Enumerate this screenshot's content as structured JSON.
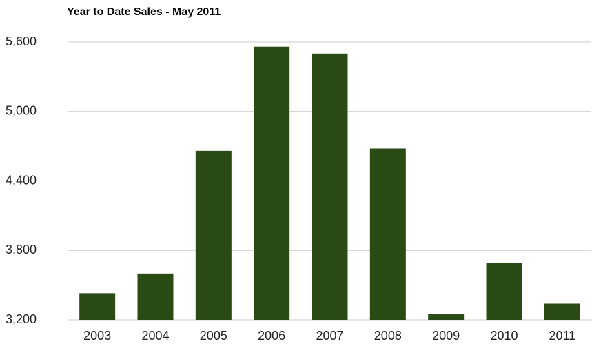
{
  "chart_data": {
    "type": "bar",
    "title": "Year to Date Sales - May 2011",
    "categories": [
      "2003",
      "2004",
      "2005",
      "2006",
      "2007",
      "2008",
      "2009",
      "2010",
      "2011"
    ],
    "values": [
      3430,
      3600,
      4660,
      5560,
      5500,
      4680,
      3250,
      3690,
      3340
    ],
    "color": "#2a4b16",
    "ylim": [
      3200,
      5600
    ],
    "yticks": [
      {
        "value": 3200,
        "label": "3,200"
      },
      {
        "value": 3800,
        "label": "3,800"
      },
      {
        "value": 4400,
        "label": "4,400"
      },
      {
        "value": 5000,
        "label": "5,000"
      },
      {
        "value": 5600,
        "label": "5,600"
      }
    ],
    "grid": true
  }
}
